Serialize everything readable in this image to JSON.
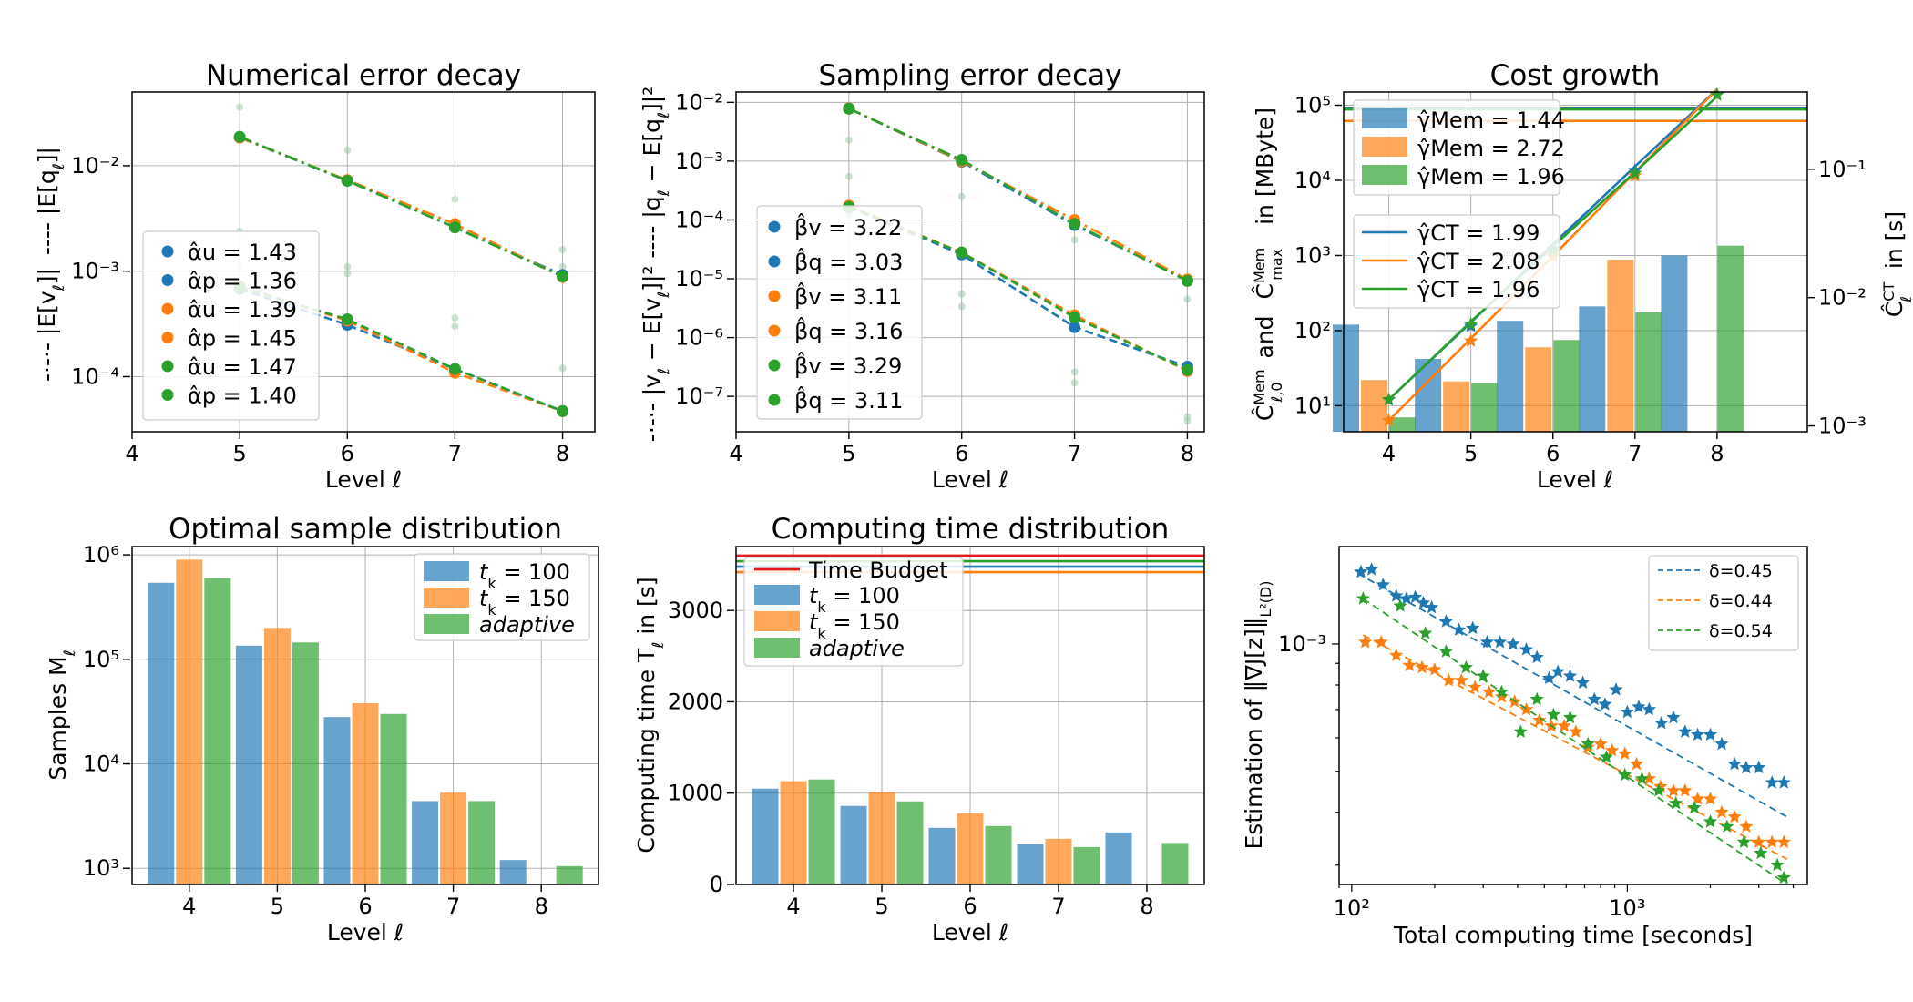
{
  "colors": {
    "blue": "#1f77b4",
    "orange": "#ff7f0e",
    "green": "#2ca02c",
    "red": "#e41a1c"
  },
  "chart_data": [
    {
      "id": "numerical-error",
      "type": "line",
      "title": "Numerical error decay",
      "xlabel": "Level ℓ",
      "ylabel_left_part1": "-·-·- |E[v",
      "ylabel_left_part2": "]|",
      "ylabel_left_part3": "---- |E[q",
      "ylabel_left_part4": "]|",
      "xlim": [
        4,
        8.3
      ],
      "ylim": [
        3e-05,
        0.05
      ],
      "yscale": "log",
      "xticks": [
        4,
        5,
        6,
        7,
        8
      ],
      "yticks": [
        {
          "value": 0.0001,
          "label": "10⁻⁴"
        },
        {
          "value": 0.001,
          "label": "10⁻³"
        },
        {
          "value": 0.01,
          "label": "10⁻²"
        }
      ],
      "series": [
        {
          "name": "α̂u = 1.43",
          "color": "blue",
          "style": "dashdot",
          "x": [
            5,
            6,
            7,
            8
          ],
          "y": [
            0.0185,
            0.0072,
            0.0026,
            0.00092
          ]
        },
        {
          "name": "α̂p = 1.36",
          "color": "blue",
          "style": "dashed",
          "x": [
            5,
            6,
            7,
            8
          ],
          "y": [
            0.00068,
            0.00031,
            0.000118,
            4.7e-05
          ]
        },
        {
          "name": "α̂u = 1.39",
          "color": "orange",
          "style": "dashdot",
          "x": [
            5,
            6,
            7,
            8
          ],
          "y": [
            0.0185,
            0.0073,
            0.0028,
            0.00088
          ]
        },
        {
          "name": "α̂p = 1.45",
          "color": "orange",
          "style": "dashed",
          "x": [
            5,
            6,
            7,
            8
          ],
          "y": [
            0.00072,
            0.00034,
            0.000109,
            4.7e-05
          ]
        },
        {
          "name": "α̂u = 1.47",
          "color": "green",
          "style": "dashdot",
          "x": [
            5,
            6,
            7,
            8
          ],
          "y": [
            0.0188,
            0.0072,
            0.0026,
            0.00089
          ]
        },
        {
          "name": "α̂p = 1.40",
          "color": "green",
          "style": "dashed",
          "x": [
            5,
            6,
            7,
            8
          ],
          "y": [
            0.00071,
            0.00035,
            0.000118,
            4.7e-05
          ]
        }
      ],
      "scatter_faint": [
        [
          5,
          0.036
        ],
        [
          5,
          0.0024
        ],
        [
          5,
          0.0011
        ],
        [
          6,
          0.014
        ],
        [
          6,
          0.0011
        ],
        [
          6,
          0.00095
        ],
        [
          7,
          0.0048
        ],
        [
          7,
          0.00036
        ],
        [
          7,
          0.0003
        ],
        [
          8,
          0.0016
        ],
        [
          8,
          0.00012
        ],
        [
          8,
          0.0011
        ]
      ]
    },
    {
      "id": "sampling-error",
      "type": "line",
      "title": "Sampling error decay",
      "xlabel": "Level ℓ",
      "ylabel_left_part1": "-·-·- |v",
      "ylabel_left_part2": " − E[v",
      "ylabel_left_part3": "]|²   ---- |q",
      "ylabel_left_part4": " − E[q",
      "ylabel_left_part5": "]|²",
      "xlim": [
        4,
        8.15
      ],
      "ylim": [
        2.5e-08,
        0.015
      ],
      "yscale": "log",
      "xticks": [
        4,
        5,
        6,
        7,
        8
      ],
      "yticks": [
        {
          "value": 1e-07,
          "label": "10⁻⁷"
        },
        {
          "value": 1e-06,
          "label": "10⁻⁶"
        },
        {
          "value": 1e-05,
          "label": "10⁻⁵"
        },
        {
          "value": 0.0001,
          "label": "10⁻⁴"
        },
        {
          "value": 0.001,
          "label": "10⁻³"
        },
        {
          "value": 0.01,
          "label": "10⁻²"
        }
      ],
      "series": [
        {
          "name": "β̂v = 3.22",
          "color": "blue",
          "style": "dashdot",
          "x": [
            5,
            6,
            7,
            8
          ],
          "y": [
            0.0079,
            0.00098,
            8.2e-05,
            9.5e-06
          ]
        },
        {
          "name": "β̂q = 3.03",
          "color": "blue",
          "style": "dashed",
          "x": [
            5,
            6,
            7,
            8
          ],
          "y": [
            0.000165,
            2.6e-05,
            1.5e-06,
            3.2e-07
          ]
        },
        {
          "name": "β̂v = 3.11",
          "color": "orange",
          "style": "dashdot",
          "x": [
            5,
            6,
            7,
            8
          ],
          "y": [
            0.0079,
            0.001,
            0.0001,
            9.7e-06
          ]
        },
        {
          "name": "β̂q = 3.16",
          "color": "orange",
          "style": "dashed",
          "x": [
            5,
            6,
            7,
            8
          ],
          "y": [
            0.000175,
            2.8e-05,
            2.4e-06,
            2.7e-07
          ]
        },
        {
          "name": "β̂v = 3.29",
          "color": "green",
          "style": "dashdot",
          "x": [
            5,
            6,
            7,
            8
          ],
          "y": [
            0.0078,
            0.00105,
            8.6e-05,
            9.2e-06
          ]
        },
        {
          "name": "β̂q = 3.11",
          "color": "green",
          "style": "dashed",
          "x": [
            5,
            6,
            7,
            8
          ],
          "y": [
            0.000165,
            2.8e-05,
            2.2e-06,
            2.8e-07
          ]
        }
      ],
      "scatter_faint": [
        [
          5,
          0.0023
        ],
        [
          5,
          0.00055
        ],
        [
          5,
          0.00012
        ],
        [
          6,
          0.00025
        ],
        [
          6,
          5.5e-06
        ],
        [
          6,
          3.4e-06
        ],
        [
          7,
          4.6e-05
        ],
        [
          7,
          2.6e-07
        ],
        [
          7,
          1.7e-07
        ],
        [
          8,
          4.5e-06
        ],
        [
          8,
          4.5e-08
        ],
        [
          8,
          3.8e-08
        ]
      ]
    },
    {
      "id": "cost-growth",
      "type": "bar",
      "title": "Cost growth",
      "xlabel": "Level ℓ",
      "ylabel_left": "Ĉ(ℓ,0)^Mem  and  Ĉmax^Mem  in  [MByte]",
      "ylabel_right": "Ĉℓ^CT  in  [s]",
      "ylabel_left_c": "Ĉ",
      "ylabel_left_mem": "Mem",
      "ylabel_left_sub": "ℓ,0",
      "ylabel_left_and": "and",
      "ylabel_left_max": "max",
      "ylabel_left_in": "in  [MByte]",
      "ylabel_right_in": "in  [s]",
      "ylabel_right_ct": "CT",
      "ylabel_right_sub": "ℓ",
      "categories": [
        4,
        5,
        6,
        7,
        8
      ],
      "ylim_left": [
        4.5,
        150000
      ],
      "ylim_right": [
        0.0009,
        0.4
      ],
      "yticks_left": [
        {
          "value": 10,
          "label": "10¹"
        },
        {
          "value": 100,
          "label": "10²"
        },
        {
          "value": 1000,
          "label": "10³"
        },
        {
          "value": 10000,
          "label": "10⁴"
        },
        {
          "value": 100000,
          "label": "10⁵"
        }
      ],
      "yticks_right": [
        {
          "value": 0.001,
          "label": "10⁻³"
        },
        {
          "value": 0.01,
          "label": "10⁻²"
        },
        {
          "value": 0.1,
          "label": "10⁻¹"
        }
      ],
      "bar_series": [
        {
          "name": "γ̂Mem = 1.44",
          "color": "blue",
          "values": [
            120,
            42,
            135,
            210,
            1000
          ]
        },
        {
          "name": "γ̂Mem = 2.72",
          "color": "orange",
          "values": [
            22,
            21,
            60,
            880,
            null
          ]
        },
        {
          "name": "γ̂Mem = 1.96",
          "color": "green",
          "values": [
            7,
            20,
            75,
            175,
            1350
          ]
        }
      ],
      "max_lines": [
        {
          "color": "blue",
          "value": 90000
        },
        {
          "color": "orange",
          "value": 62000
        },
        {
          "color": "green",
          "value": 88000
        }
      ],
      "ct_series": [
        {
          "name": "γ̂CT = 1.99",
          "color": "blue",
          "x": [
            4,
            5,
            6,
            7,
            8
          ],
          "y": [
            0.0016,
            0.0064,
            0.026,
            0.105,
            0.42
          ]
        },
        {
          "name": "γ̂CT = 2.08",
          "color": "orange",
          "x": [
            4,
            5,
            6,
            7,
            8
          ],
          "y": [
            0.0011,
            0.0048,
            0.021,
            0.095,
            0.42
          ]
        },
        {
          "name": "γ̂CT = 1.96",
          "color": "green",
          "x": [
            4,
            5,
            6,
            7,
            8
          ],
          "y": [
            0.0016,
            0.0065,
            0.025,
            0.095,
            0.37
          ]
        }
      ],
      "ct_points": [
        {
          "color": "blue",
          "x": [
            4,
            5,
            6,
            7,
            8
          ],
          "y": [
            0.0016,
            0.006,
            0.024,
            0.098,
            0.38
          ]
        },
        {
          "color": "orange",
          "x": [
            4,
            5,
            6,
            7,
            8
          ],
          "y": [
            0.0011,
            0.0046,
            0.021,
            0.089,
            0.38
          ]
        },
        {
          "color": "green",
          "x": [
            4,
            5,
            6,
            7,
            8
          ],
          "y": [
            0.0016,
            0.0062,
            0.023,
            0.093,
            0.38
          ]
        }
      ]
    },
    {
      "id": "sample-distribution",
      "type": "bar",
      "title": "Optimal sample distribution",
      "xlabel": "Level ℓ",
      "ylabel": "Samples  M",
      "ylabel_sub": "ℓ",
      "categories": [
        4,
        5,
        6,
        7,
        8
      ],
      "ylim": [
        700,
        1200000
      ],
      "yscale": "log",
      "yticks": [
        {
          "value": 1000,
          "label": "10³"
        },
        {
          "value": 10000,
          "label": "10⁴"
        },
        {
          "value": 100000,
          "label": "10⁵"
        },
        {
          "value": 1000000,
          "label": "10⁶"
        }
      ],
      "series": [
        {
          "name": "t_k = 100",
          "label_main": "t",
          "label_sub": "k",
          "label_rest": " = 100",
          "color": "blue",
          "values": [
            540000,
            135000,
            28000,
            4400,
            1200
          ]
        },
        {
          "name": "t_k = 150",
          "label_main": "t",
          "label_sub": "k",
          "label_rest": " = 150",
          "color": "orange",
          "values": [
            900000,
            200000,
            38000,
            5300,
            null
          ]
        },
        {
          "name": "adaptive",
          "label_main": "adaptive",
          "label_sub": "",
          "label_rest": "",
          "color": "green",
          "values": [
            600000,
            145000,
            30000,
            4400,
            1050
          ]
        }
      ]
    },
    {
      "id": "time-distribution",
      "type": "bar",
      "title": "Computing time distribution",
      "xlabel": "Level ℓ",
      "ylabel": "Computing time  T",
      "ylabel_sub": "ℓ",
      "ylabel_tail": "  in  [s]",
      "categories": [
        4,
        5,
        6,
        7,
        8
      ],
      "ylim": [
        0,
        3700
      ],
      "yticks": [
        {
          "value": 0,
          "label": "0"
        },
        {
          "value": 1000,
          "label": "1000"
        },
        {
          "value": 2000,
          "label": "2000"
        },
        {
          "value": 3000,
          "label": "3000"
        }
      ],
      "budget": {
        "name": "Time Budget",
        "color": "red",
        "value": 3600
      },
      "totals": [
        {
          "color": "blue",
          "value": 3480
        },
        {
          "color": "green",
          "value": 3540
        },
        {
          "color": "orange",
          "value": 3420
        }
      ],
      "series": [
        {
          "name": "t_k = 100",
          "label_main": "t",
          "label_sub": "k",
          "label_rest": " = 100",
          "color": "blue",
          "values": [
            1050,
            860,
            620,
            440,
            570
          ]
        },
        {
          "name": "t_k = 150",
          "label_main": "t",
          "label_sub": "k",
          "label_rest": " = 150",
          "color": "orange",
          "values": [
            1130,
            1010,
            780,
            500,
            null
          ]
        },
        {
          "name": "adaptive",
          "label_main": "adaptive",
          "label_sub": "",
          "label_rest": "",
          "color": "green",
          "values": [
            1150,
            910,
            640,
            410,
            455
          ]
        }
      ]
    },
    {
      "id": "gradient-estimation",
      "type": "scatter",
      "title": "",
      "xlabel": "Total computing time [seconds]",
      "ylabel": "Estimation of  ‖∇J[z]‖",
      "ylabel_sub": "L²(D)",
      "xlim": [
        90,
        4500
      ],
      "ylim": [
        0.00027,
        0.0017
      ],
      "xscale": "log",
      "yscale": "log",
      "xticks": [
        {
          "value": 100,
          "label": "10²"
        },
        {
          "value": 1000,
          "label": "10³"
        }
      ],
      "yticks": [
        {
          "value": 0.001,
          "label": "10⁻³"
        }
      ],
      "series": [
        {
          "name": "δ=0.45",
          "color": "blue",
          "fit": [
            [
              105,
              0.00147
            ],
            [
              3800,
              0.00039
            ]
          ],
          "x": [
            108,
            118,
            130,
            145,
            158,
            170,
            182,
            195,
            220,
            245,
            275,
            310,
            345,
            385,
            430,
            470,
            520,
            560,
            620,
            690,
            760,
            830,
            910,
            1000,
            1100,
            1200,
            1330,
            1470,
            1620,
            1800,
            2000,
            2200,
            2450,
            2700,
            3000,
            3350,
            3700
          ],
          "y": [
            0.00148,
            0.0015,
            0.00138,
            0.0013,
            0.00128,
            0.00129,
            0.00125,
            0.00122,
            0.00113,
            0.00108,
            0.00109,
            0.00101,
            0.00101,
            0.001,
            0.00097,
            0.00093,
            0.00083,
            0.00086,
            0.00084,
            0.00081,
            0.00074,
            0.00072,
            0.00078,
            0.00069,
            0.00071,
            0.0007,
            0.00065,
            0.00067,
            0.00062,
            0.00061,
            0.00061,
            0.00058,
            0.00052,
            0.00051,
            0.00051,
            0.00047,
            0.00047
          ]
        },
        {
          "name": "δ=0.44",
          "color": "orange",
          "fit": [
            [
              110,
              0.00105
            ],
            [
              3800,
              0.00031
            ]
          ],
          "x": [
            112,
            128,
            145,
            162,
            180,
            200,
            225,
            250,
            280,
            315,
            350,
            390,
            430,
            480,
            530,
            590,
            650,
            720,
            800,
            880,
            980,
            1080,
            1200,
            1320,
            1470,
            1620,
            1800,
            2000,
            2200,
            2450,
            2700,
            3000,
            3350,
            3700
          ],
          "y": [
            0.00101,
            0.00101,
            0.00094,
            0.00089,
            0.00088,
            0.00087,
            0.00082,
            0.00082,
            0.00079,
            0.00077,
            0.00075,
            0.00073,
            0.0007,
            0.00066,
            0.00064,
            0.00064,
            0.00062,
            0.00057,
            0.00058,
            0.00056,
            0.00055,
            0.00052,
            0.00048,
            0.00046,
            0.00045,
            0.00045,
            0.00043,
            0.00043,
            0.0004,
            0.00039,
            0.00037,
            0.00034,
            0.00034,
            0.00034
          ]
        },
        {
          "name": "δ=0.54",
          "color": "green",
          "fit": [
            [
              110,
              0.00128
            ],
            [
              3800,
              0.00027
            ]
          ],
          "x": [
            110,
            150,
            185,
            220,
            260,
            300,
            350,
            410,
            470,
            540,
            620,
            720,
            840,
            980,
            1130,
            1300,
            1500,
            1750,
            2000,
            2300,
            2650,
            3050,
            3500,
            3700
          ],
          "y": [
            0.00128,
            0.00123,
            0.00106,
            0.00096,
            0.00088,
            0.00084,
            0.00077,
            0.00062,
            0.00074,
            0.00068,
            0.00067,
            0.00058,
            0.00054,
            0.00049,
            0.00048,
            0.00045,
            0.00042,
            0.00041,
            0.00038,
            0.00037,
            0.00034,
            0.00032,
            0.0003,
            0.00028
          ]
        }
      ]
    }
  ]
}
